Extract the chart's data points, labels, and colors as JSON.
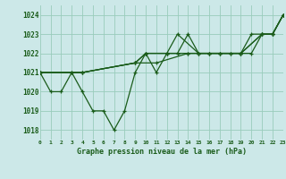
{
  "bg_color": "#cce8e8",
  "grid_color": "#99ccbb",
  "line_color": "#1a5c1a",
  "title": "Graphe pression niveau de la mer (hPa)",
  "xlim": [
    0,
    23
  ],
  "ylim": [
    1017.5,
    1024.5
  ],
  "yticks": [
    1018,
    1019,
    1020,
    1021,
    1022,
    1023,
    1024
  ],
  "xticks": [
    0,
    1,
    2,
    3,
    4,
    5,
    6,
    7,
    8,
    9,
    10,
    11,
    12,
    13,
    14,
    15,
    16,
    17,
    18,
    19,
    20,
    21,
    22,
    23
  ],
  "series1_x": [
    0,
    1,
    2,
    3,
    4,
    5,
    6,
    7,
    8,
    9,
    10,
    11,
    12,
    13,
    14,
    15,
    16,
    17,
    18,
    19,
    20,
    21,
    22,
    23
  ],
  "series1_y": [
    1021.0,
    1020.0,
    1020.0,
    1021.0,
    1020.0,
    1019.0,
    1019.0,
    1018.0,
    1019.0,
    1021.0,
    1022.0,
    1021.0,
    1022.0,
    1022.0,
    1023.0,
    1022.0,
    1022.0,
    1022.0,
    1022.0,
    1022.0,
    1023.0,
    1023.0,
    1023.0,
    1024.0
  ],
  "series2_x": [
    0,
    4,
    9,
    11,
    14,
    16,
    19,
    21,
    22,
    23
  ],
  "series2_y": [
    1021.0,
    1021.0,
    1021.5,
    1021.5,
    1022.0,
    1022.0,
    1022.0,
    1023.0,
    1023.0,
    1024.0
  ],
  "series3_x": [
    0,
    4,
    9,
    10,
    12,
    13,
    15,
    17,
    19,
    21,
    22,
    23
  ],
  "series3_y": [
    1021.0,
    1021.0,
    1021.5,
    1022.0,
    1022.0,
    1023.0,
    1022.0,
    1022.0,
    1022.0,
    1023.0,
    1023.0,
    1024.0
  ],
  "series4_x": [
    0,
    3,
    4,
    9,
    10,
    12,
    14,
    15,
    16,
    17,
    18,
    19,
    20,
    21,
    22,
    23
  ],
  "series4_y": [
    1021.0,
    1021.0,
    1021.0,
    1021.5,
    1022.0,
    1022.0,
    1022.0,
    1022.0,
    1022.0,
    1022.0,
    1022.0,
    1022.0,
    1022.0,
    1023.0,
    1023.0,
    1024.0
  ]
}
